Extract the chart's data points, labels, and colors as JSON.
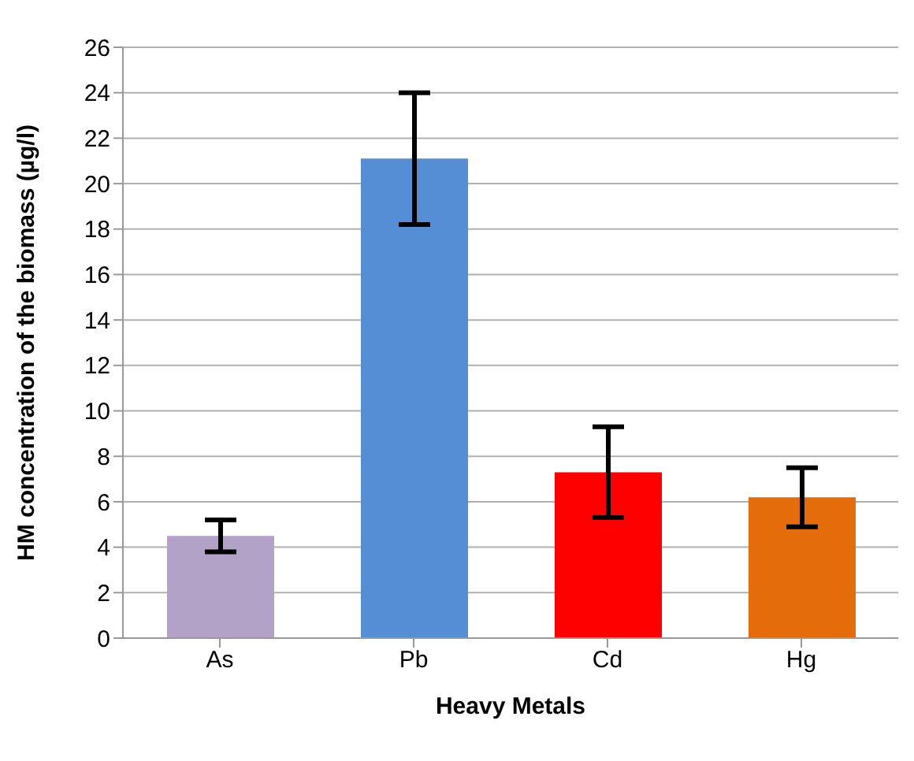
{
  "chart_data": {
    "type": "bar",
    "xlabel": "Heavy Metals",
    "ylabel": "HM concentration of the biomass (µg/l)",
    "categories": [
      "As",
      "Pb",
      "Cd",
      "Hg"
    ],
    "values": [
      4.5,
      21.1,
      7.3,
      6.2
    ],
    "errors": [
      0.7,
      2.9,
      2.0,
      1.3
    ],
    "colors": [
      "#b3a2c7",
      "#558ed5",
      "#ff0000",
      "#e46c0a"
    ],
    "ylim": [
      0,
      26
    ],
    "yticks": [
      0,
      2,
      4,
      6,
      8,
      10,
      12,
      14,
      16,
      18,
      20,
      22,
      24,
      26
    ],
    "grid": "y"
  }
}
